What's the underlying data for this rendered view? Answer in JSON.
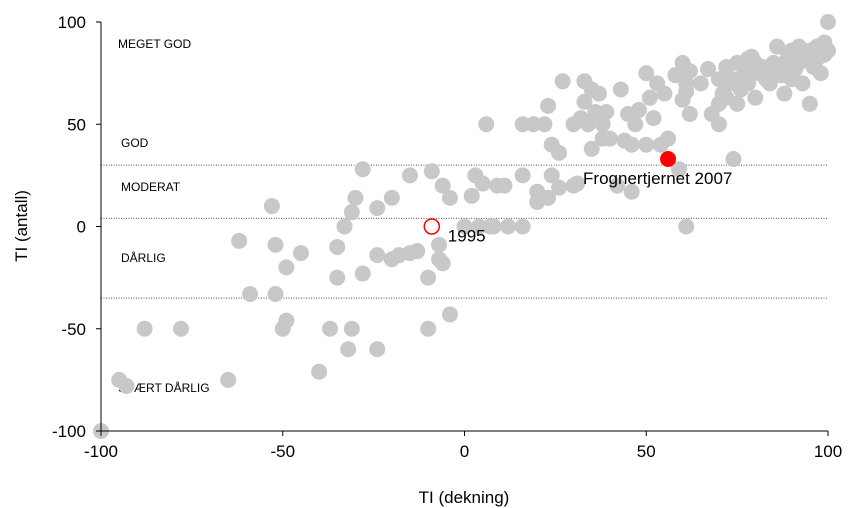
{
  "chart_data": {
    "type": "scatter",
    "title": "",
    "xlabel": "TI (dekning)",
    "ylabel": "TI (antall)",
    "xlim": [
      -100,
      100
    ],
    "ylim": [
      -100,
      100
    ],
    "x_ticks": [
      "-100",
      "-50",
      "0",
      "50",
      "100"
    ],
    "y_ticks": [
      "100",
      "50",
      "0",
      "-50",
      "-100"
    ],
    "thresholds": [
      30,
      4,
      -35
    ],
    "zones": [
      "MEGET GOD",
      "GOD",
      "MODERAT",
      "DÅRLIG",
      "SVÆRT DÅRLIG"
    ],
    "grid": false,
    "point_color": "#c8c8c8",
    "highlight_color": "#ff0000",
    "annotations": [
      {
        "label": "Frognertjernet 2007",
        "x": 56,
        "y": 33,
        "style": "filled"
      },
      {
        "label": "1995",
        "x": -9,
        "y": 0,
        "style": "open"
      }
    ],
    "points": [
      [
        -100,
        -100
      ],
      [
        -95,
        -75
      ],
      [
        -93,
        -78
      ],
      [
        -88,
        -50
      ],
      [
        -78,
        -50
      ],
      [
        -65,
        -75
      ],
      [
        -62,
        -7
      ],
      [
        -59,
        -33
      ],
      [
        -53,
        10
      ],
      [
        -52,
        -9
      ],
      [
        -52,
        -33
      ],
      [
        -50,
        -50
      ],
      [
        -49,
        -46
      ],
      [
        -49,
        -20
      ],
      [
        -45,
        -13
      ],
      [
        -40,
        -71
      ],
      [
        -37,
        -50
      ],
      [
        -35,
        -25
      ],
      [
        -35,
        -10
      ],
      [
        -33,
        0
      ],
      [
        -32,
        -60
      ],
      [
        -31,
        7
      ],
      [
        -31,
        -50
      ],
      [
        -30,
        14
      ],
      [
        -28,
        28
      ],
      [
        -28,
        -23
      ],
      [
        -24,
        9
      ],
      [
        -24,
        -14
      ],
      [
        -24,
        -60
      ],
      [
        -20,
        14
      ],
      [
        -20,
        -16
      ],
      [
        -18,
        -14
      ],
      [
        -15,
        25
      ],
      [
        -15,
        -13
      ],
      [
        -13,
        -12
      ],
      [
        -10,
        -25
      ],
      [
        -10,
        -50
      ],
      [
        -9,
        27
      ],
      [
        -7,
        -16
      ],
      [
        -7,
        -9
      ],
      [
        -6,
        20
      ],
      [
        -6,
        -18
      ],
      [
        -4,
        -43
      ],
      [
        -4,
        14
      ],
      [
        0,
        0
      ],
      [
        2,
        15
      ],
      [
        3,
        25
      ],
      [
        4,
        0
      ],
      [
        5,
        21
      ],
      [
        6,
        50
      ],
      [
        7,
        0
      ],
      [
        8,
        0
      ],
      [
        9,
        20
      ],
      [
        11,
        20
      ],
      [
        12,
        0
      ],
      [
        16,
        0
      ],
      [
        16,
        25
      ],
      [
        16,
        50
      ],
      [
        19,
        50
      ],
      [
        20,
        17
      ],
      [
        20,
        12
      ],
      [
        22,
        50
      ],
      [
        23,
        14
      ],
      [
        23,
        59
      ],
      [
        24,
        40
      ],
      [
        24,
        25
      ],
      [
        26,
        36
      ],
      [
        26,
        19
      ],
      [
        27,
        71
      ],
      [
        30,
        50
      ],
      [
        30,
        20
      ],
      [
        31,
        21
      ],
      [
        32,
        53
      ],
      [
        33,
        71
      ],
      [
        33,
        61
      ],
      [
        34,
        50
      ],
      [
        35,
        67
      ],
      [
        35,
        38
      ],
      [
        36,
        56
      ],
      [
        37,
        65
      ],
      [
        38,
        50
      ],
      [
        38,
        43
      ],
      [
        39,
        56
      ],
      [
        40,
        43
      ],
      [
        42,
        20
      ],
      [
        43,
        67
      ],
      [
        44,
        42
      ],
      [
        45,
        55
      ],
      [
        46,
        40
      ],
      [
        46,
        17
      ],
      [
        47,
        50
      ],
      [
        48,
        57
      ],
      [
        50,
        40
      ],
      [
        50,
        75
      ],
      [
        51,
        63
      ],
      [
        52,
        53
      ],
      [
        53,
        70
      ],
      [
        54,
        40
      ],
      [
        55,
        65
      ],
      [
        56,
        43
      ],
      [
        58,
        74
      ],
      [
        59,
        28
      ],
      [
        60,
        80
      ],
      [
        60,
        62
      ],
      [
        61,
        70
      ],
      [
        61,
        66
      ],
      [
        61,
        0
      ],
      [
        62,
        76
      ],
      [
        62,
        55
      ],
      [
        65,
        70
      ],
      [
        67,
        77
      ],
      [
        68,
        55
      ],
      [
        70,
        72
      ],
      [
        70,
        50
      ],
      [
        70,
        60
      ],
      [
        71,
        65
      ],
      [
        72,
        78
      ],
      [
        72,
        63
      ],
      [
        73,
        70
      ],
      [
        74,
        72
      ],
      [
        74,
        33
      ],
      [
        75,
        60
      ],
      [
        75,
        80
      ],
      [
        76,
        67
      ],
      [
        77,
        75
      ],
      [
        78,
        82
      ],
      [
        78,
        70
      ],
      [
        79,
        83
      ],
      [
        80,
        63
      ],
      [
        80,
        80
      ],
      [
        81,
        75
      ],
      [
        82,
        78
      ],
      [
        83,
        72
      ],
      [
        84,
        70
      ],
      [
        85,
        80
      ],
      [
        86,
        88
      ],
      [
        86,
        76
      ],
      [
        87,
        74
      ],
      [
        88,
        65
      ],
      [
        88,
        80
      ],
      [
        89,
        85
      ],
      [
        90,
        86
      ],
      [
        90,
        72
      ],
      [
        91,
        77
      ],
      [
        92,
        88
      ],
      [
        92,
        80
      ],
      [
        93,
        70
      ],
      [
        94,
        84
      ],
      [
        95,
        60
      ],
      [
        95,
        86
      ],
      [
        96,
        78
      ],
      [
        97,
        88
      ],
      [
        97,
        82
      ],
      [
        98,
        75
      ],
      [
        99,
        90
      ],
      [
        99,
        84
      ],
      [
        100,
        86
      ],
      [
        100,
        100
      ]
    ]
  }
}
